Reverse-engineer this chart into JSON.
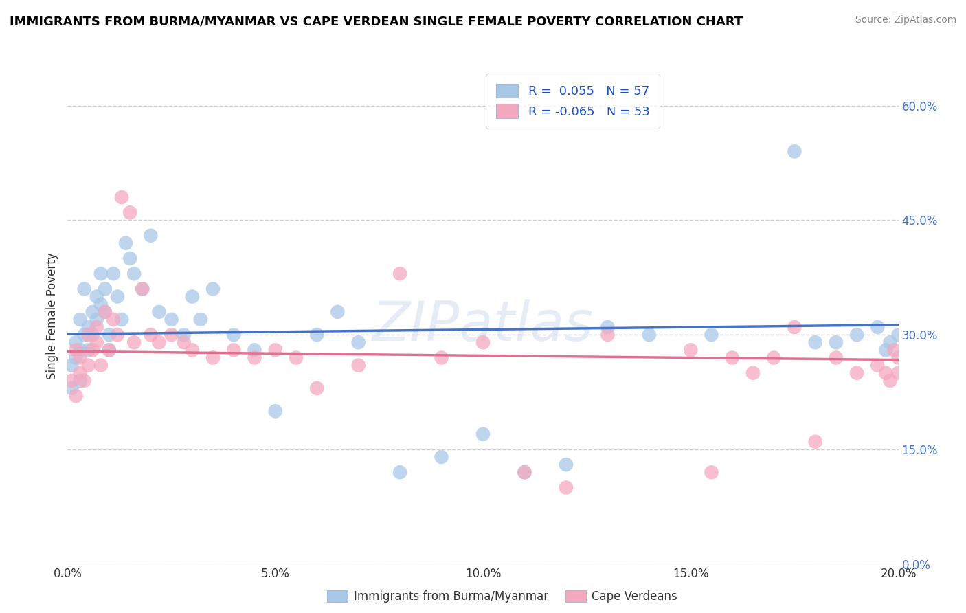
{
  "title": "IMMIGRANTS FROM BURMA/MYANMAR VS CAPE VERDEAN SINGLE FEMALE POVERTY CORRELATION CHART",
  "source": "Source: ZipAtlas.com",
  "ylabel": "Single Female Poverty",
  "legend_label1": "Immigrants from Burma/Myanmar",
  "legend_label2": "Cape Verdeans",
  "r1": 0.055,
  "n1": 57,
  "r2": -0.065,
  "n2": 53,
  "xlim": [
    0.0,
    0.2
  ],
  "ylim": [
    0.0,
    0.65
  ],
  "yticks": [
    0.0,
    0.15,
    0.3,
    0.45,
    0.6
  ],
  "xticks": [
    0.0,
    0.05,
    0.1,
    0.15,
    0.2
  ],
  "color_blue": "#a8c8e8",
  "color_pink": "#f4a8c0",
  "line_blue": "#4472c4",
  "line_pink": "#e07090",
  "watermark_color": "#d0ddf0",
  "blue_scatter_x": [
    0.001,
    0.001,
    0.002,
    0.002,
    0.003,
    0.003,
    0.003,
    0.004,
    0.004,
    0.005,
    0.005,
    0.006,
    0.006,
    0.007,
    0.007,
    0.008,
    0.008,
    0.009,
    0.009,
    0.01,
    0.01,
    0.011,
    0.012,
    0.013,
    0.014,
    0.015,
    0.016,
    0.018,
    0.02,
    0.022,
    0.025,
    0.028,
    0.03,
    0.032,
    0.035,
    0.04,
    0.045,
    0.05,
    0.06,
    0.065,
    0.07,
    0.08,
    0.09,
    0.1,
    0.11,
    0.12,
    0.13,
    0.14,
    0.155,
    0.175,
    0.18,
    0.185,
    0.19,
    0.195,
    0.197,
    0.198,
    0.2
  ],
  "blue_scatter_y": [
    0.26,
    0.23,
    0.29,
    0.27,
    0.32,
    0.28,
    0.24,
    0.3,
    0.36,
    0.31,
    0.28,
    0.33,
    0.3,
    0.35,
    0.32,
    0.34,
    0.38,
    0.36,
    0.33,
    0.3,
    0.28,
    0.38,
    0.35,
    0.32,
    0.42,
    0.4,
    0.38,
    0.36,
    0.43,
    0.33,
    0.32,
    0.3,
    0.35,
    0.32,
    0.36,
    0.3,
    0.28,
    0.2,
    0.3,
    0.33,
    0.29,
    0.12,
    0.14,
    0.17,
    0.12,
    0.13,
    0.31,
    0.3,
    0.3,
    0.54,
    0.29,
    0.29,
    0.3,
    0.31,
    0.28,
    0.29,
    0.3
  ],
  "pink_scatter_x": [
    0.001,
    0.002,
    0.002,
    0.003,
    0.003,
    0.004,
    0.005,
    0.005,
    0.006,
    0.007,
    0.007,
    0.008,
    0.009,
    0.01,
    0.011,
    0.012,
    0.013,
    0.015,
    0.016,
    0.018,
    0.02,
    0.022,
    0.025,
    0.028,
    0.03,
    0.035,
    0.04,
    0.045,
    0.05,
    0.055,
    0.06,
    0.07,
    0.08,
    0.09,
    0.1,
    0.11,
    0.12,
    0.13,
    0.15,
    0.155,
    0.16,
    0.165,
    0.17,
    0.175,
    0.18,
    0.185,
    0.19,
    0.195,
    0.197,
    0.198,
    0.199,
    0.2,
    0.2
  ],
  "pink_scatter_y": [
    0.24,
    0.22,
    0.28,
    0.27,
    0.25,
    0.24,
    0.26,
    0.3,
    0.28,
    0.29,
    0.31,
    0.26,
    0.33,
    0.28,
    0.32,
    0.3,
    0.48,
    0.46,
    0.29,
    0.36,
    0.3,
    0.29,
    0.3,
    0.29,
    0.28,
    0.27,
    0.28,
    0.27,
    0.28,
    0.27,
    0.23,
    0.26,
    0.38,
    0.27,
    0.29,
    0.12,
    0.1,
    0.3,
    0.28,
    0.12,
    0.27,
    0.25,
    0.27,
    0.31,
    0.16,
    0.27,
    0.25,
    0.26,
    0.25,
    0.24,
    0.28,
    0.27,
    0.25
  ]
}
